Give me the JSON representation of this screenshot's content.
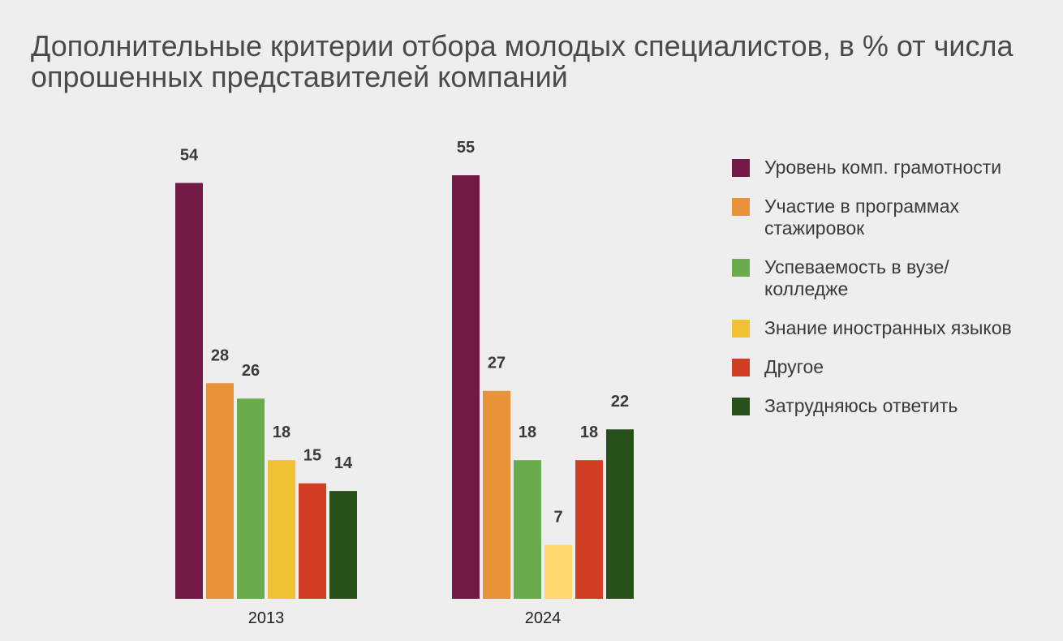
{
  "title": "Дополнительные критерии отбора молодых специалистов, в % от числа опрошенных представителей компаний",
  "chart_data": {
    "type": "bar",
    "categories": [
      "2013",
      "2024"
    ],
    "ylim": [
      0,
      55
    ],
    "legend_position": "right",
    "series": [
      {
        "name": "Уровень комп. грамотности",
        "color": "#731a47",
        "values": [
          54,
          55
        ]
      },
      {
        "name": "Участие в программах стажировок",
        "color": "#e8923a",
        "values": [
          28,
          27
        ]
      },
      {
        "name": "Успеваемость в вузе/колледже",
        "color": "#6aab4e",
        "values": [
          26,
          18
        ]
      },
      {
        "name": "Знание иностранных языков",
        "color": "#f0c233",
        "colors_by_category": [
          "#f0c233",
          "#fdd96b"
        ],
        "values": [
          18,
          7
        ]
      },
      {
        "name": "Другое",
        "color": "#d03f24",
        "values": [
          15,
          18
        ]
      },
      {
        "name": "Затрудняюсь ответить",
        "color": "#27501a",
        "values": [
          14,
          22
        ]
      }
    ]
  }
}
